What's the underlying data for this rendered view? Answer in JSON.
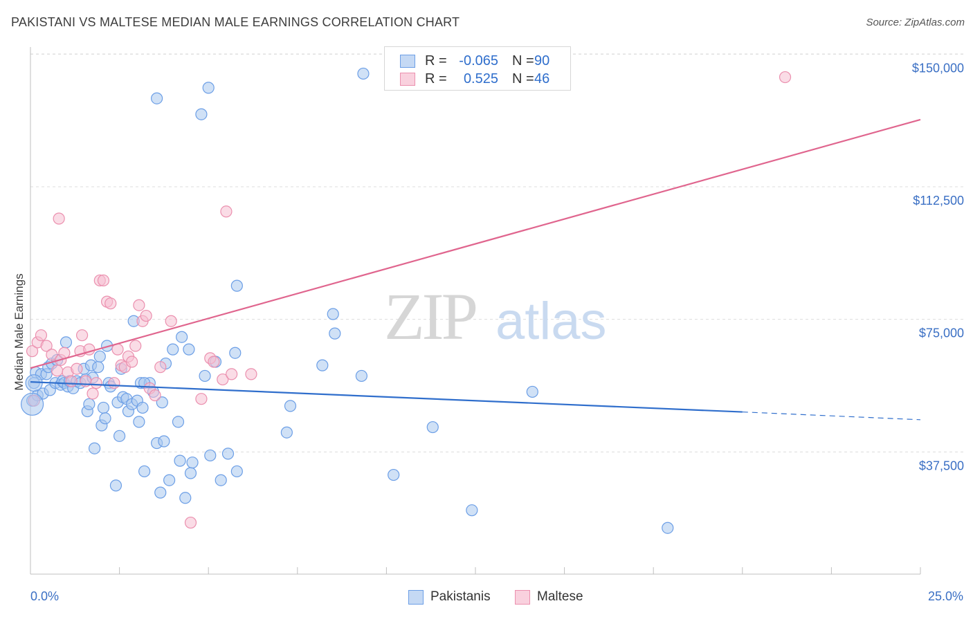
{
  "header": {
    "title": "PAKISTANI VS MALTESE MEDIAN MALE EARNINGS CORRELATION CHART",
    "source": "Source: ZipAtlas.com"
  },
  "watermark": {
    "zip": "ZIP",
    "atlas": "atlas"
  },
  "legend": {
    "rows": [
      {
        "r_label": "R =",
        "r_value": "-0.065",
        "n_label": "N =",
        "n_value": "90",
        "color": "#6b9ee6"
      },
      {
        "r_label": "R =",
        "r_value": "0.525",
        "n_label": "N =",
        "n_value": "46",
        "color": "#f08cac"
      }
    ]
  },
  "bottom_legend": {
    "pakistanis": "Pakistanis",
    "maltese": "Maltese"
  },
  "colors": {
    "blue_fill": "#a9c8ef",
    "blue_stroke": "#6b9ee6",
    "blue_line": "#2f6ecc",
    "pink_fill": "#f6c0d1",
    "pink_stroke": "#eb8fae",
    "pink_line": "#e0658e",
    "tick_text": "#3a6fc4",
    "grid": "#dcdcdc"
  },
  "chart_data": {
    "type": "scatter",
    "title": "PAKISTANI VS MALTESE MEDIAN MALE EARNINGS CORRELATION CHART",
    "xlabel": "",
    "ylabel": "Median Male Earnings",
    "xlim": [
      0,
      25
    ],
    "ylim": [
      0,
      152000
    ],
    "x_tick_labels": [
      "0.0%",
      "25.0%"
    ],
    "y_ticks": [
      {
        "value": 37500,
        "label": "$37,500"
      },
      {
        "value": 75000,
        "label": "$75,000"
      },
      {
        "value": 112500,
        "label": "$112,500"
      },
      {
        "value": 150000,
        "label": "$150,000"
      }
    ],
    "grid": true,
    "legend_position": "top-center",
    "series": [
      {
        "name": "Pakistanis",
        "r": -0.065,
        "n": 90,
        "trend": {
          "x0": 0,
          "y0": 57300,
          "x1": 20,
          "y1": 48800,
          "dashed_to_x": 25,
          "dashed_to_y": 46600
        },
        "points": [
          [
            0.05,
            52000
          ],
          [
            0.1,
            57000
          ],
          [
            0.15,
            60000
          ],
          [
            0.2,
            53500
          ],
          [
            0.3,
            59500
          ],
          [
            0.35,
            54000
          ],
          [
            0.45,
            59500
          ],
          [
            0.5,
            61500
          ],
          [
            0.55,
            55000
          ],
          [
            0.6,
            62500
          ],
          [
            0.7,
            57000
          ],
          [
            0.75,
            63500
          ],
          [
            0.85,
            56500
          ],
          [
            0.9,
            57500
          ],
          [
            0.95,
            57000
          ],
          [
            1.0,
            68500
          ],
          [
            1.05,
            56000
          ],
          [
            1.1,
            57500
          ],
          [
            1.2,
            55500
          ],
          [
            1.3,
            57500
          ],
          [
            1.4,
            57000
          ],
          [
            1.5,
            61000
          ],
          [
            1.55,
            58000
          ],
          [
            1.6,
            49000
          ],
          [
            1.65,
            51000
          ],
          [
            1.7,
            62000
          ],
          [
            1.75,
            58500
          ],
          [
            1.8,
            38500
          ],
          [
            1.9,
            61500
          ],
          [
            1.95,
            64500
          ],
          [
            2.0,
            45000
          ],
          [
            2.05,
            50000
          ],
          [
            2.1,
            47000
          ],
          [
            2.15,
            67500
          ],
          [
            2.2,
            57000
          ],
          [
            2.25,
            56000
          ],
          [
            2.4,
            28000
          ],
          [
            2.45,
            51500
          ],
          [
            2.5,
            42000
          ],
          [
            2.55,
            61000
          ],
          [
            2.6,
            53000
          ],
          [
            2.7,
            52500
          ],
          [
            2.75,
            49000
          ],
          [
            2.85,
            51000
          ],
          [
            2.9,
            74500
          ],
          [
            3.0,
            52000
          ],
          [
            3.05,
            46000
          ],
          [
            3.1,
            57000
          ],
          [
            3.15,
            50000
          ],
          [
            3.2,
            32000
          ],
          [
            3.35,
            57000
          ],
          [
            3.45,
            54500
          ],
          [
            3.55,
            40000
          ],
          [
            3.65,
            26000
          ],
          [
            3.7,
            51500
          ],
          [
            3.75,
            40500
          ],
          [
            3.8,
            62500
          ],
          [
            3.9,
            29500
          ],
          [
            4.0,
            66500
          ],
          [
            4.15,
            46000
          ],
          [
            4.2,
            35000
          ],
          [
            4.25,
            70000
          ],
          [
            4.35,
            24500
          ],
          [
            4.45,
            66500
          ],
          [
            4.5,
            31500
          ],
          [
            4.55,
            34500
          ],
          [
            4.9,
            59000
          ],
          [
            5.05,
            36500
          ],
          [
            5.2,
            63000
          ],
          [
            5.35,
            29500
          ],
          [
            5.55,
            37000
          ],
          [
            5.75,
            65500
          ],
          [
            5.8,
            32000
          ],
          [
            7.2,
            43000
          ],
          [
            7.3,
            50500
          ],
          [
            8.2,
            62000
          ],
          [
            8.5,
            76500
          ],
          [
            8.55,
            71000
          ],
          [
            9.3,
            59000
          ],
          [
            10.2,
            31000
          ],
          [
            11.3,
            44500
          ],
          [
            12.4,
            21000
          ],
          [
            14.1,
            54500
          ],
          [
            17.9,
            16000
          ],
          [
            3.55,
            137500
          ],
          [
            5.0,
            140500
          ],
          [
            4.8,
            133000
          ],
          [
            9.35,
            144500
          ],
          [
            5.8,
            84500
          ],
          [
            3.2,
            57000
          ]
        ]
      },
      {
        "name": "Maltese",
        "r": 0.525,
        "n": 46,
        "trend": {
          "x0": 0,
          "y0": 61200,
          "x1": 25,
          "y1": 131500
        },
        "points": [
          [
            0.05,
            66000
          ],
          [
            0.1,
            52000
          ],
          [
            0.2,
            68500
          ],
          [
            0.3,
            70500
          ],
          [
            0.45,
            67500
          ],
          [
            0.6,
            65000
          ],
          [
            0.75,
            60500
          ],
          [
            0.8,
            103500
          ],
          [
            0.85,
            63500
          ],
          [
            0.95,
            65500
          ],
          [
            1.05,
            60000
          ],
          [
            1.15,
            57500
          ],
          [
            1.3,
            61000
          ],
          [
            1.4,
            66000
          ],
          [
            1.45,
            70500
          ],
          [
            1.55,
            57500
          ],
          [
            1.65,
            66500
          ],
          [
            1.75,
            54000
          ],
          [
            1.85,
            57000
          ],
          [
            1.95,
            86000
          ],
          [
            2.05,
            86000
          ],
          [
            2.15,
            80000
          ],
          [
            2.25,
            79500
          ],
          [
            2.35,
            57000
          ],
          [
            2.45,
            66500
          ],
          [
            2.55,
            62000
          ],
          [
            2.65,
            61500
          ],
          [
            2.75,
            64500
          ],
          [
            2.85,
            63000
          ],
          [
            2.95,
            67500
          ],
          [
            3.05,
            79000
          ],
          [
            3.15,
            74500
          ],
          [
            3.25,
            76000
          ],
          [
            3.35,
            55500
          ],
          [
            3.5,
            53500
          ],
          [
            3.65,
            61500
          ],
          [
            3.95,
            74500
          ],
          [
            4.5,
            17500
          ],
          [
            4.8,
            52500
          ],
          [
            5.05,
            64000
          ],
          [
            5.15,
            63000
          ],
          [
            5.4,
            58000
          ],
          [
            5.65,
            59500
          ],
          [
            6.2,
            59500
          ],
          [
            5.5,
            105500
          ],
          [
            21.2,
            143500
          ]
        ]
      }
    ]
  }
}
